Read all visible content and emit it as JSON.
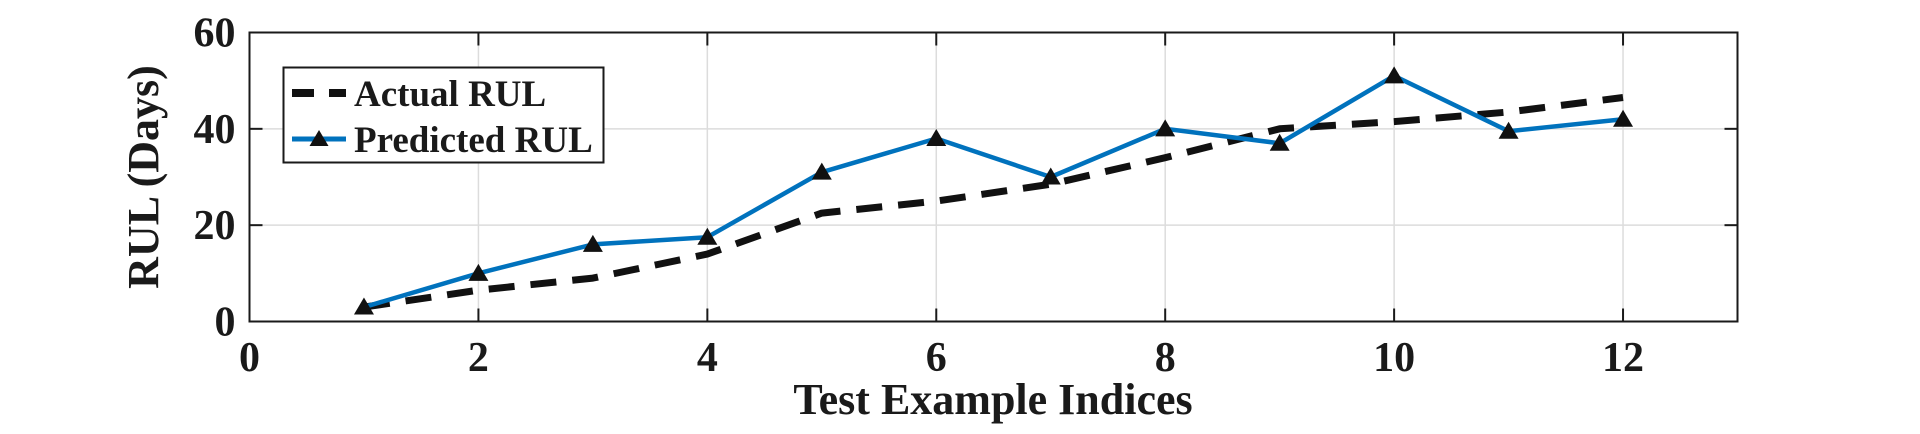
{
  "chart_data": {
    "type": "line",
    "title": "",
    "xlabel": "Test Example Indices",
    "ylabel": "RUL (Days)",
    "xlim": [
      0,
      13
    ],
    "ylim": [
      0,
      60
    ],
    "xticks": [
      0,
      2,
      4,
      6,
      8,
      10,
      12
    ],
    "yticks": [
      0,
      20,
      40,
      60
    ],
    "grid": "on",
    "legend": {
      "position": "top-left",
      "border": true
    },
    "x": [
      1,
      2,
      3,
      4,
      5,
      6,
      7,
      8,
      9,
      10,
      11,
      12
    ],
    "series": [
      {
        "name": "Actual RUL",
        "line_style": "dashed",
        "color": "#111111",
        "marker": "none",
        "values": [
          3,
          6.5,
          9,
          14,
          22.5,
          25,
          28.5,
          34,
          40,
          41.5,
          43.5,
          46.5
        ]
      },
      {
        "name": "Predicted RUL",
        "line_style": "solid",
        "color": "#0072BD",
        "marker": "filled-triangle-up",
        "marker_color": "#111111",
        "values": [
          3,
          10,
          16,
          17.5,
          31,
          38,
          30,
          40,
          37,
          51,
          39.5,
          42
        ]
      }
    ]
  },
  "colors": {
    "background": "#ffffff",
    "axis": "#1a1a1a",
    "grid": "#dcdcdc",
    "tick_text": "#1a1a1a",
    "legend_border": "#1a1a1a",
    "legend_background": "#ffffff"
  }
}
